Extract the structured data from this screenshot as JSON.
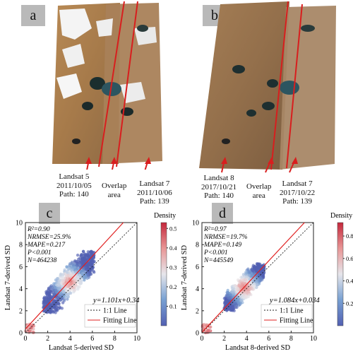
{
  "top_panels": {
    "a": {
      "label": "a",
      "left_caption": [
        "Landsat 5",
        "2011/10/05",
        "Path: 140"
      ],
      "overlap_caption": [
        "Overlap",
        "area"
      ],
      "right_caption": [
        "Landsat 7",
        "2011/10/06",
        "Path: 139"
      ]
    },
    "b": {
      "label": "b",
      "left_caption": [
        "Landsat 8",
        "2017/10/21",
        "Path: 140"
      ],
      "overlap_caption": [
        "Overlap",
        "area"
      ],
      "right_caption": [
        "Landsat 7",
        "2017/10/22",
        "Path: 139"
      ]
    }
  },
  "chart_data": [
    {
      "type": "scatter",
      "label": "c",
      "xlabel": "Landsat 5-derived SD",
      "ylabel": "Landsat 7-derived SD",
      "xlim": [
        0,
        10
      ],
      "ylim": [
        0,
        10
      ],
      "xticks": [
        "0",
        "2",
        "4",
        "6",
        "8",
        "10"
      ],
      "yticks": [
        "0",
        "2",
        "4",
        "6",
        "8",
        "10"
      ],
      "stats": [
        "R²=0.90",
        "NRMSE=25.9%",
        "MAPE=0.217",
        "P<0.001",
        "N=464238"
      ],
      "equation": "y=1.101x+0.34",
      "fit": {
        "slope": 1.101,
        "intercept": 0.34
      },
      "density_cluster": {
        "center": [
          4.0,
          4.6
        ],
        "x_range": [
          1.6,
          6.2
        ],
        "y_range": [
          1.8,
          7.4
        ]
      },
      "legend": [
        {
          "name": "1:1 Line",
          "style": "dotted"
        },
        {
          "name": "Fitting Line",
          "style": "solid",
          "color": "#e02020"
        }
      ],
      "colorbar": {
        "title": "Density",
        "ticks": [
          "0.1",
          "0.2",
          "0.3",
          "0.4",
          "0.5"
        ],
        "range": [
          0.0,
          0.53
        ]
      }
    },
    {
      "type": "scatter",
      "label": "d",
      "xlabel": "Landsat 8-derived SD",
      "ylabel": "Landsat 7-derived SD",
      "xlim": [
        0,
        10
      ],
      "ylim": [
        0,
        10
      ],
      "xticks": [
        "0",
        "2",
        "4",
        "6",
        "8",
        "10"
      ],
      "yticks": [
        "0",
        "2",
        "4",
        "6",
        "8",
        "10"
      ],
      "stats": [
        "R²=0.97",
        "NRMSE=19.7%",
        "MAPE=0.149",
        "P<0.001",
        "N=445549"
      ],
      "equation": "y=1.084x+0.034",
      "fit": {
        "slope": 1.084,
        "intercept": 0.034
      },
      "density_cluster": {
        "center": [
          3.8,
          4.1
        ],
        "x_range": [
          2.0,
          5.6
        ],
        "y_range": [
          2.0,
          6.3
        ]
      },
      "legend": [
        {
          "name": "1:1 Line",
          "style": "dotted"
        },
        {
          "name": "Fitting Line",
          "style": "solid",
          "color": "#e02020"
        }
      ],
      "colorbar": {
        "title": "Density",
        "ticks": [
          "0.2",
          "0.4",
          "0.6",
          "0.8"
        ],
        "range": [
          0.0,
          0.92
        ]
      }
    }
  ]
}
